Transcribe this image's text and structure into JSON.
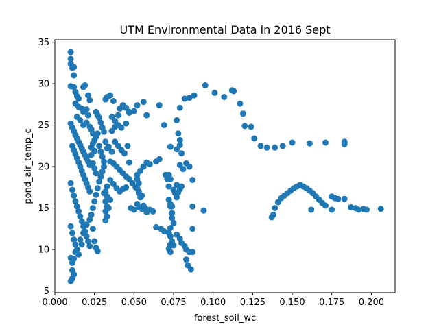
{
  "chart_data": {
    "type": "scatter",
    "title": "UTM Environmental Data in 2016 Sept",
    "xlabel": "forest_soil_wc",
    "ylabel": "pond_air_temp_c",
    "xlim": [
      0.0,
      0.215
    ],
    "ylim": [
      4.8,
      35.3
    ],
    "xticks": [
      0.0,
      0.025,
      0.05,
      0.075,
      0.1,
      0.125,
      0.15,
      0.175,
      0.2
    ],
    "xtick_labels": [
      "0.000",
      "0.025",
      "0.050",
      "0.075",
      "0.100",
      "0.125",
      "0.150",
      "0.175",
      "0.200"
    ],
    "yticks": [
      5,
      10,
      15,
      20,
      25,
      30,
      35
    ],
    "ytick_labels": [
      "5",
      "10",
      "15",
      "20",
      "25",
      "30",
      "35"
    ],
    "grid": false,
    "marker_color": "#1f77b4",
    "points": [
      [
        0.01,
        33.8
      ],
      [
        0.01,
        33.0
      ],
      [
        0.01,
        32.4
      ],
      [
        0.011,
        31.9
      ],
      [
        0.012,
        32.0
      ],
      [
        0.012,
        31.0
      ],
      [
        0.01,
        29.7
      ],
      [
        0.012,
        29.6
      ],
      [
        0.013,
        29.0
      ],
      [
        0.014,
        28.5
      ],
      [
        0.015,
        28.2
      ],
      [
        0.013,
        27.6
      ],
      [
        0.015,
        27.2
      ],
      [
        0.017,
        27.0
      ],
      [
        0.018,
        26.6
      ],
      [
        0.02,
        26.9
      ],
      [
        0.018,
        29.6
      ],
      [
        0.019,
        29.8
      ],
      [
        0.021,
        28.6
      ],
      [
        0.022,
        28.0
      ],
      [
        0.014,
        26.0
      ],
      [
        0.016,
        25.6
      ],
      [
        0.018,
        25.0
      ],
      [
        0.02,
        25.3
      ],
      [
        0.022,
        24.8
      ],
      [
        0.023,
        24.5
      ],
      [
        0.024,
        24.0
      ],
      [
        0.021,
        26.2
      ],
      [
        0.01,
        25.2
      ],
      [
        0.011,
        24.7
      ],
      [
        0.012,
        24.3
      ],
      [
        0.013,
        23.8
      ],
      [
        0.014,
        23.4
      ],
      [
        0.015,
        23.0
      ],
      [
        0.016,
        22.6
      ],
      [
        0.017,
        22.2
      ],
      [
        0.018,
        21.8
      ],
      [
        0.019,
        21.4
      ],
      [
        0.02,
        21.0
      ],
      [
        0.021,
        20.6
      ],
      [
        0.022,
        20.2
      ],
      [
        0.011,
        22.5
      ],
      [
        0.012,
        22.0
      ],
      [
        0.013,
        21.5
      ],
      [
        0.014,
        21.0
      ],
      [
        0.015,
        20.5
      ],
      [
        0.016,
        20.0
      ],
      [
        0.017,
        19.5
      ],
      [
        0.018,
        19.0
      ],
      [
        0.019,
        18.5
      ],
      [
        0.02,
        18.0
      ],
      [
        0.021,
        17.5
      ],
      [
        0.022,
        17.0
      ],
      [
        0.023,
        22.3
      ],
      [
        0.024,
        22.8
      ],
      [
        0.025,
        21.9
      ],
      [
        0.023,
        21.4
      ],
      [
        0.024,
        20.4
      ],
      [
        0.025,
        19.8
      ],
      [
        0.026,
        19.2
      ],
      [
        0.01,
        18.0
      ],
      [
        0.011,
        17.2
      ],
      [
        0.012,
        16.5
      ],
      [
        0.013,
        15.8
      ],
      [
        0.014,
        15.2
      ],
      [
        0.015,
        14.6
      ],
      [
        0.016,
        14.0
      ],
      [
        0.017,
        13.4
      ],
      [
        0.018,
        12.8
      ],
      [
        0.019,
        12.2
      ],
      [
        0.02,
        11.6
      ],
      [
        0.021,
        11.0
      ],
      [
        0.022,
        10.4
      ],
      [
        0.01,
        12.8
      ],
      [
        0.011,
        12.0
      ],
      [
        0.012,
        11.2
      ],
      [
        0.013,
        10.6
      ],
      [
        0.014,
        10.0
      ],
      [
        0.015,
        9.4
      ],
      [
        0.012,
        8.9
      ],
      [
        0.011,
        8.4
      ],
      [
        0.01,
        9.0
      ],
      [
        0.013,
        9.7
      ],
      [
        0.011,
        7.5
      ],
      [
        0.012,
        7.0
      ],
      [
        0.01,
        6.2
      ],
      [
        0.011,
        6.5
      ],
      [
        0.016,
        11.2
      ],
      [
        0.017,
        10.6
      ],
      [
        0.018,
        12.0
      ],
      [
        0.02,
        13.0
      ],
      [
        0.022,
        13.6
      ],
      [
        0.023,
        14.2
      ],
      [
        0.024,
        12.5
      ],
      [
        0.025,
        11.0
      ],
      [
        0.026,
        10.2
      ],
      [
        0.027,
        9.8
      ],
      [
        0.024,
        15.0
      ],
      [
        0.025,
        15.8
      ],
      [
        0.026,
        16.6
      ],
      [
        0.027,
        17.4
      ],
      [
        0.028,
        18.2
      ],
      [
        0.029,
        18.8
      ],
      [
        0.03,
        19.4
      ],
      [
        0.031,
        20.0
      ],
      [
        0.025,
        23.2
      ],
      [
        0.026,
        23.6
      ],
      [
        0.027,
        24.0
      ],
      [
        0.028,
        22.5
      ],
      [
        0.029,
        21.8
      ],
      [
        0.03,
        21.2
      ],
      [
        0.031,
        20.6
      ],
      [
        0.026,
        26.6
      ],
      [
        0.027,
        26.2
      ],
      [
        0.028,
        25.9
      ],
      [
        0.029,
        25.3
      ],
      [
        0.03,
        24.7
      ],
      [
        0.031,
        24.2
      ],
      [
        0.032,
        28.1
      ],
      [
        0.033,
        28.4
      ],
      [
        0.035,
        28.6
      ],
      [
        0.037,
        27.9
      ],
      [
        0.036,
        26.0
      ],
      [
        0.038,
        25.5
      ],
      [
        0.04,
        26.2
      ],
      [
        0.041,
        27.0
      ],
      [
        0.043,
        27.4
      ],
      [
        0.045,
        27.1
      ],
      [
        0.047,
        26.6
      ],
      [
        0.05,
        26.7
      ],
      [
        0.052,
        27.4
      ],
      [
        0.056,
        27.8
      ],
      [
        0.058,
        26.2
      ],
      [
        0.066,
        27.4
      ],
      [
        0.036,
        24.3
      ],
      [
        0.038,
        24.8
      ],
      [
        0.04,
        25.0
      ],
      [
        0.042,
        24.7
      ],
      [
        0.045,
        25.2
      ],
      [
        0.047,
        26.5
      ],
      [
        0.038,
        23.0
      ],
      [
        0.04,
        22.5
      ],
      [
        0.042,
        22.0
      ],
      [
        0.044,
        21.6
      ],
      [
        0.046,
        22.5
      ],
      [
        0.034,
        22.4
      ],
      [
        0.036,
        21.8
      ],
      [
        0.032,
        23.0
      ],
      [
        0.033,
        22.2
      ],
      [
        0.035,
        20.6
      ],
      [
        0.037,
        20.4
      ],
      [
        0.039,
        20.0
      ],
      [
        0.041,
        19.6
      ],
      [
        0.043,
        19.2
      ],
      [
        0.045,
        18.8
      ],
      [
        0.047,
        18.5
      ],
      [
        0.049,
        18.0
      ],
      [
        0.051,
        17.5
      ],
      [
        0.053,
        17.0
      ],
      [
        0.055,
        16.5
      ],
      [
        0.035,
        18.4
      ],
      [
        0.037,
        17.9
      ],
      [
        0.039,
        17.4
      ],
      [
        0.041,
        17.0
      ],
      [
        0.043,
        17.3
      ],
      [
        0.045,
        17.5
      ],
      [
        0.047,
        20.5
      ],
      [
        0.032,
        17.0
      ],
      [
        0.033,
        16.4
      ],
      [
        0.032,
        15.8
      ],
      [
        0.033,
        15.2
      ],
      [
        0.032,
        14.6
      ],
      [
        0.033,
        14.0
      ],
      [
        0.032,
        13.5
      ],
      [
        0.034,
        15.0
      ],
      [
        0.035,
        16.0
      ],
      [
        0.031,
        16.8
      ],
      [
        0.033,
        17.6
      ],
      [
        0.052,
        19.0
      ],
      [
        0.054,
        19.5
      ],
      [
        0.056,
        20.0
      ],
      [
        0.058,
        20.5
      ],
      [
        0.06,
        20.3
      ],
      [
        0.064,
        20.6
      ],
      [
        0.066,
        20.9
      ],
      [
        0.052,
        18.5
      ],
      [
        0.053,
        18.0
      ],
      [
        0.052,
        17.4
      ],
      [
        0.053,
        16.8
      ],
      [
        0.054,
        16.3
      ],
      [
        0.048,
        15.0
      ],
      [
        0.05,
        14.8
      ],
      [
        0.052,
        15.5
      ],
      [
        0.053,
        15.1
      ],
      [
        0.055,
        14.9
      ],
      [
        0.057,
        15.0
      ],
      [
        0.058,
        14.5
      ],
      [
        0.056,
        15.3
      ],
      [
        0.06,
        14.8
      ],
      [
        0.062,
        14.6
      ],
      [
        0.064,
        12.7
      ],
      [
        0.067,
        12.5
      ],
      [
        0.069,
        12.2
      ],
      [
        0.072,
        12.0
      ],
      [
        0.073,
        11.6
      ],
      [
        0.074,
        11.0
      ],
      [
        0.073,
        10.6
      ],
      [
        0.072,
        10.1
      ],
      [
        0.073,
        9.7
      ],
      [
        0.075,
        10.5
      ],
      [
        0.077,
        11.8
      ],
      [
        0.079,
        11.3
      ],
      [
        0.08,
        10.8
      ],
      [
        0.082,
        10.4
      ],
      [
        0.083,
        10.0
      ],
      [
        0.085,
        9.7
      ],
      [
        0.083,
        8.8
      ],
      [
        0.084,
        8.1
      ],
      [
        0.086,
        7.6
      ],
      [
        0.087,
        9.7
      ],
      [
        0.073,
        15.2
      ],
      [
        0.074,
        14.4
      ],
      [
        0.074,
        13.8
      ],
      [
        0.075,
        13.2
      ],
      [
        0.073,
        12.6
      ],
      [
        0.087,
        15.2
      ],
      [
        0.094,
        14.7
      ],
      [
        0.087,
        12.5
      ],
      [
        0.087,
        18.4
      ],
      [
        0.079,
        17.3
      ],
      [
        0.08,
        17.6
      ],
      [
        0.078,
        16.9
      ],
      [
        0.077,
        17.8
      ],
      [
        0.081,
        19.7
      ],
      [
        0.079,
        20.2
      ],
      [
        0.083,
        20.4
      ],
      [
        0.085,
        20.0
      ],
      [
        0.07,
        19.0
      ],
      [
        0.071,
        18.5
      ],
      [
        0.072,
        19.0
      ],
      [
        0.073,
        18.5
      ],
      [
        0.072,
        17.6
      ],
      [
        0.075,
        17.2
      ],
      [
        0.076,
        16.8
      ],
      [
        0.077,
        16.3
      ],
      [
        0.072,
        16.0
      ],
      [
        0.073,
        15.5
      ],
      [
        0.074,
        15.2
      ],
      [
        0.073,
        22.4
      ],
      [
        0.077,
        22.1
      ],
      [
        0.079,
        22.6
      ],
      [
        0.078,
        24.0
      ],
      [
        0.08,
        21.6
      ],
      [
        0.079,
        23.2
      ],
      [
        0.069,
        25.0
      ],
      [
        0.077,
        25.6
      ],
      [
        0.079,
        27.1
      ],
      [
        0.082,
        28.2
      ],
      [
        0.085,
        28.3
      ],
      [
        0.088,
        28.6
      ],
      [
        0.095,
        29.8
      ],
      [
        0.101,
        28.9
      ],
      [
        0.107,
        28.4
      ],
      [
        0.112,
        29.2
      ],
      [
        0.113,
        29.1
      ],
      [
        0.117,
        27.6
      ],
      [
        0.119,
        26.4
      ],
      [
        0.12,
        24.9
      ],
      [
        0.124,
        24.8
      ],
      [
        0.126,
        23.4
      ],
      [
        0.13,
        22.5
      ],
      [
        0.134,
        22.3
      ],
      [
        0.139,
        22.3
      ],
      [
        0.144,
        22.5
      ],
      [
        0.15,
        22.9
      ],
      [
        0.161,
        22.8
      ],
      [
        0.171,
        22.9
      ],
      [
        0.183,
        23.0
      ],
      [
        0.183,
        22.7
      ],
      [
        0.137,
        13.9
      ],
      [
        0.138,
        14.2
      ],
      [
        0.139,
        15.0
      ],
      [
        0.141,
        15.7
      ],
      [
        0.143,
        16.2
      ],
      [
        0.145,
        16.5
      ],
      [
        0.147,
        16.8
      ],
      [
        0.149,
        17.1
      ],
      [
        0.151,
        17.4
      ],
      [
        0.153,
        17.6
      ],
      [
        0.155,
        17.8
      ],
      [
        0.157,
        17.6
      ],
      [
        0.159,
        17.4
      ],
      [
        0.161,
        17.1
      ],
      [
        0.163,
        16.8
      ],
      [
        0.165,
        16.4
      ],
      [
        0.167,
        16.0
      ],
      [
        0.169,
        15.6
      ],
      [
        0.171,
        15.3
      ],
      [
        0.175,
        16.4
      ],
      [
        0.177,
        16.2
      ],
      [
        0.179,
        16.1
      ],
      [
        0.183,
        16.1
      ],
      [
        0.175,
        14.8
      ],
      [
        0.162,
        14.8
      ],
      [
        0.187,
        15.1
      ],
      [
        0.19,
        15.0
      ],
      [
        0.192,
        14.8
      ],
      [
        0.195,
        14.9
      ],
      [
        0.197,
        14.8
      ],
      [
        0.206,
        14.9
      ]
    ]
  }
}
